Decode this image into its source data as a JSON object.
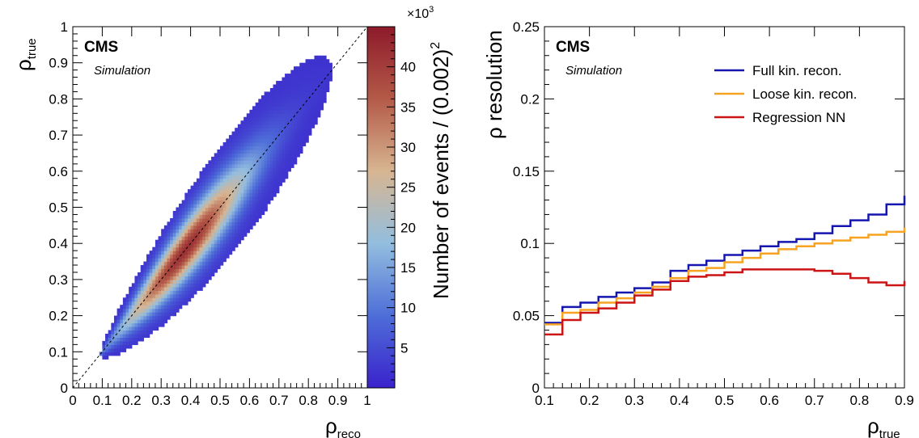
{
  "chart_data": [
    {
      "type": "heatmap",
      "xlabel": "ρ",
      "xlabel_sub": "reco",
      "ylabel": "ρ",
      "ylabel_sub": "true",
      "xlim": [
        0,
        1
      ],
      "ylim": [
        0,
        1
      ],
      "x_ticks": [
        "0",
        "0.1",
        "0.2",
        "0.3",
        "0.4",
        "0.5",
        "0.6",
        "0.7",
        "0.8",
        "0.9",
        "1"
      ],
      "y_ticks": [
        "0",
        "0.1",
        "0.2",
        "0.3",
        "0.4",
        "0.5",
        "0.6",
        "0.7",
        "0.8",
        "0.9",
        "1"
      ],
      "experiment": "CMS",
      "tag": "Simulation",
      "colorbar": {
        "label": "Number of events / (0.002)",
        "label_exponent": "2",
        "multiplier": "×10",
        "multiplier_exponent": "3",
        "range": [
          0,
          45
        ],
        "ticks": [
          "5",
          "10",
          "15",
          "20",
          "25",
          "30",
          "35",
          "40"
        ],
        "colors": [
          "#3a22cc",
          "#4e6ed8",
          "#93bedf",
          "#d7b591",
          "#b45a48",
          "#8d1a2a"
        ]
      },
      "diagonal": {
        "from": [
          0,
          0
        ],
        "to": [
          1,
          1
        ],
        "style": "dashed"
      },
      "distribution": {
        "ridge_x": [
          0.09,
          0.88
        ],
        "ridge_y": [
          0.09,
          0.88
        ],
        "peak_x": 0.38,
        "peak_value": 42,
        "min_value": 2,
        "band_halfwidth_at_peak": 0.17
      }
    },
    {
      "type": "line",
      "step": true,
      "xlabel": "ρ",
      "xlabel_sub": "true",
      "ylabel": "ρ resolution",
      "xlim": [
        0.1,
        0.9
      ],
      "ylim": [
        0,
        0.25
      ],
      "x_ticks": [
        "0.1",
        "0.2",
        "0.3",
        "0.4",
        "0.5",
        "0.6",
        "0.7",
        "0.8",
        "0.9"
      ],
      "y_ticks": [
        "0",
        "0.05",
        "0.1",
        "0.15",
        "0.2",
        "0.25"
      ],
      "experiment": "CMS",
      "tag": "Simulation",
      "legend_position": "top-right",
      "bin_edges": [
        0.1,
        0.14,
        0.18,
        0.22,
        0.26,
        0.3,
        0.34,
        0.38,
        0.42,
        0.46,
        0.5,
        0.54,
        0.58,
        0.62,
        0.66,
        0.7,
        0.74,
        0.78,
        0.82,
        0.86,
        0.9
      ],
      "series": [
        {
          "name": "Full kin. recon.",
          "color": "#1515b0",
          "values": [
            0.045,
            0.056,
            0.059,
            0.063,
            0.066,
            0.069,
            0.073,
            0.081,
            0.085,
            0.088,
            0.092,
            0.095,
            0.098,
            0.101,
            0.103,
            0.107,
            0.112,
            0.116,
            0.12,
            0.127,
            0.133
          ]
        },
        {
          "name": "Loose kin. recon.",
          "color": "#f7a321",
          "values": [
            0.044,
            0.052,
            0.054,
            0.059,
            0.062,
            0.066,
            0.07,
            0.076,
            0.081,
            0.083,
            0.087,
            0.09,
            0.093,
            0.096,
            0.098,
            0.1,
            0.102,
            0.104,
            0.106,
            0.108,
            0.111
          ]
        },
        {
          "name": "Regression NN",
          "color": "#cc1414",
          "values": [
            0.037,
            0.047,
            0.052,
            0.055,
            0.059,
            0.064,
            0.068,
            0.074,
            0.077,
            0.078,
            0.08,
            0.082,
            0.082,
            0.082,
            0.082,
            0.081,
            0.079,
            0.076,
            0.073,
            0.071,
            0.074
          ]
        }
      ]
    }
  ]
}
